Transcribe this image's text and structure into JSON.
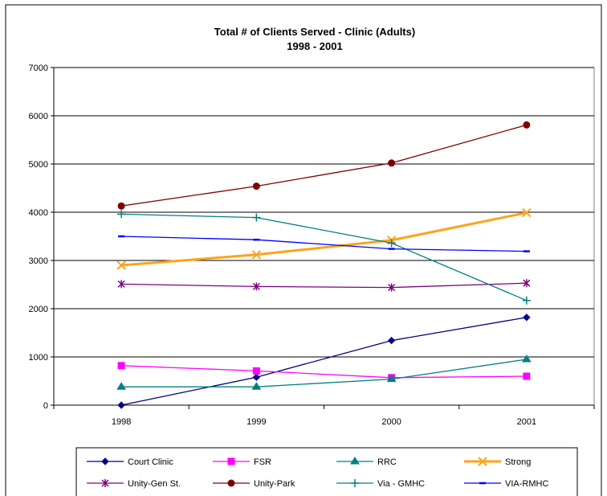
{
  "chart_data": {
    "type": "line",
    "title": "Total # of Clients Served -  Clinic (Adults)",
    "subtitle": "1998 - 2001",
    "xlabel": "",
    "ylabel": "",
    "categories": [
      "1998",
      "1999",
      "2000",
      "2001"
    ],
    "ylim": [
      0,
      7000
    ],
    "yticks": [
      0,
      1000,
      2000,
      3000,
      4000,
      5000,
      6000,
      7000
    ],
    "grid": "horizontal",
    "legend_position": "bottom",
    "series": [
      {
        "name": "Court Clinic",
        "values": [
          0,
          580,
          1340,
          1820
        ],
        "color": "#000080",
        "marker": "diamond"
      },
      {
        "name": "FSR",
        "values": [
          820,
          710,
          570,
          600
        ],
        "color": "#ff00ff",
        "marker": "square"
      },
      {
        "name": "RRC",
        "values": [
          380,
          380,
          540,
          950
        ],
        "color": "#008080",
        "marker": "triangle"
      },
      {
        "name": "Strong",
        "values": [
          2900,
          3120,
          3420,
          3990
        ],
        "color": "#ffa31a",
        "marker": "x"
      },
      {
        "name": "Unity-Gen St.",
        "values": [
          2510,
          2460,
          2440,
          2530
        ],
        "color": "#800080",
        "marker": "star"
      },
      {
        "name": "Unity-Park",
        "values": [
          4130,
          4540,
          5020,
          5810
        ],
        "color": "#800000",
        "marker": "circle"
      },
      {
        "name": "Via - GMHC",
        "values": [
          3960,
          3890,
          3360,
          2170
        ],
        "color": "#008080",
        "marker": "plus"
      },
      {
        "name": "VIA-RMHC",
        "values": [
          3500,
          3430,
          3240,
          3190
        ],
        "color": "#0000ff",
        "marker": "dash"
      }
    ]
  }
}
